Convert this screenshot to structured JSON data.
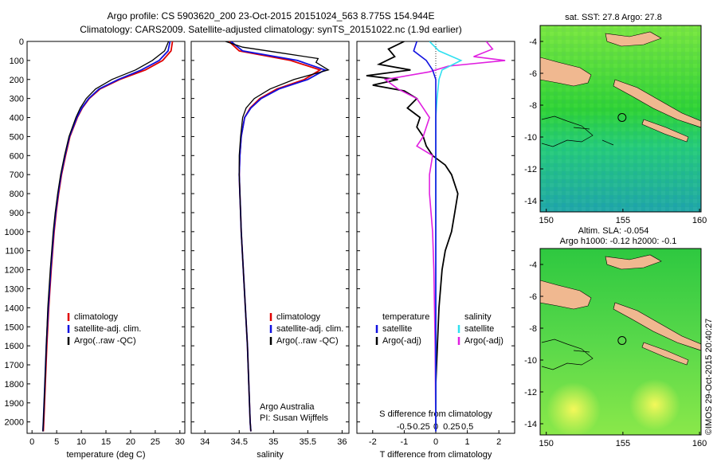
{
  "title_line1": "Argo profile: CS 5903620_200 23-Oct-2015 20151024_563 8.775S 154.944E",
  "title_line2": "Climatology: CARS2009. Satellite-adjusted climatology: synTS_20151022.nc (1.9d earlier)",
  "colors": {
    "climatology": "#e00000",
    "satellite": "#1010e0",
    "argo": "#000000",
    "sat_salinity": "#30e0f0",
    "argo_salinity": "#e020e0",
    "land": "#f0b890"
  },
  "chart_data": [
    {
      "type": "line",
      "title": "",
      "xlabel": "temperature (deg C)",
      "xlim": [
        -1,
        31
      ],
      "xticks": [
        "0",
        "5",
        "10",
        "15",
        "20",
        "25",
        "30"
      ],
      "ylim": [
        2060,
        0
      ],
      "yticks": [
        "0",
        "100",
        "200",
        "300",
        "400",
        "500",
        "600",
        "700",
        "800",
        "900",
        "1000",
        "1100",
        "1200",
        "1300",
        "1400",
        "1500",
        "1600",
        "1700",
        "1800",
        "1900",
        "2000"
      ],
      "legend": [
        "climatology",
        "satellite-adj. clim.",
        "Argo(..raw -QC)"
      ],
      "series": [
        {
          "name": "climatology",
          "depth": [
            0,
            50,
            100,
            150,
            200,
            250,
            300,
            350,
            400,
            500,
            600,
            700,
            800,
            900,
            1000,
            1200,
            1400,
            1600,
            1800,
            2000,
            2050
          ],
          "values": [
            28.5,
            28.2,
            26.5,
            23.0,
            17.8,
            13.8,
            11.6,
            10.2,
            9.2,
            7.7,
            6.8,
            6.0,
            5.4,
            4.9,
            4.5,
            3.9,
            3.4,
            3.0,
            2.7,
            2.4,
            2.3
          ]
        },
        {
          "name": "satellite-adj. clim.",
          "depth": [
            0,
            50,
            100,
            150,
            200,
            250,
            300,
            350,
            400,
            500,
            600,
            700,
            800,
            900,
            1000,
            1200,
            1400,
            1600,
            1800,
            2000,
            2050
          ],
          "values": [
            28.0,
            27.6,
            25.8,
            22.2,
            17.5,
            13.6,
            11.5,
            10.1,
            9.1,
            7.6,
            6.7,
            5.9,
            5.3,
            4.8,
            4.4,
            3.8,
            3.3,
            2.9,
            2.6,
            2.3,
            2.2
          ]
        },
        {
          "name": "Argo(..raw -QC)",
          "depth": [
            0,
            50,
            100,
            150,
            200,
            250,
            300,
            350,
            400,
            500,
            600,
            700,
            800,
            900,
            1000,
            1200,
            1400,
            1600,
            1800,
            2000,
            2050
          ],
          "values": [
            27.7,
            26.9,
            24.4,
            21.0,
            16.2,
            12.9,
            11.0,
            9.8,
            8.9,
            7.5,
            6.6,
            5.8,
            5.2,
            4.7,
            4.3,
            3.7,
            3.2,
            2.9,
            2.6,
            2.3,
            2.2
          ]
        }
      ]
    },
    {
      "type": "line",
      "title": "",
      "xlabel": "salinity",
      "xlim": [
        33.8,
        36.1
      ],
      "xticks": [
        "34",
        "34.5",
        "35",
        "35.5",
        "36"
      ],
      "ylim": [
        2060,
        0
      ],
      "legend": [
        "climatology",
        "satellite-adj. clim.",
        "Argo(..raw -QC)"
      ],
      "annotation": [
        "Argo Australia",
        "PI: Susan Wijffels"
      ],
      "series": [
        {
          "name": "climatology",
          "depth": [
            0,
            50,
            100,
            150,
            200,
            250,
            300,
            350,
            400,
            500,
            600,
            700,
            800,
            900,
            1000,
            1200,
            1400,
            1600,
            1800,
            2000,
            2050
          ],
          "values": [
            34.35,
            34.5,
            35.25,
            35.68,
            35.45,
            35.05,
            34.8,
            34.66,
            34.58,
            34.53,
            34.51,
            34.5,
            34.51,
            34.52,
            34.53,
            34.56,
            34.59,
            34.62,
            34.64,
            34.66,
            34.67
          ]
        },
        {
          "name": "satellite-adj. clim.",
          "depth": [
            0,
            50,
            100,
            150,
            200,
            250,
            300,
            350,
            400,
            500,
            600,
            700,
            800,
            900,
            1000,
            1200,
            1400,
            1600,
            1800,
            2000,
            2050
          ],
          "values": [
            34.38,
            34.55,
            35.35,
            35.75,
            35.5,
            35.08,
            34.82,
            34.67,
            34.58,
            34.53,
            34.51,
            34.5,
            34.51,
            34.52,
            34.53,
            34.56,
            34.59,
            34.62,
            34.64,
            34.66,
            34.67
          ]
        },
        {
          "name": "Argo(..raw -QC)",
          "depth": [
            0,
            30,
            60,
            90,
            110,
            150,
            200,
            250,
            300,
            350,
            400,
            500,
            600,
            700,
            800,
            900,
            1000,
            1200,
            1400,
            1600,
            1800,
            2000,
            2050
          ],
          "values": [
            34.3,
            34.55,
            35.1,
            35.65,
            35.62,
            35.8,
            35.3,
            34.95,
            34.72,
            34.6,
            34.55,
            34.52,
            34.5,
            34.5,
            34.51,
            34.52,
            34.53,
            34.56,
            34.59,
            34.62,
            34.64,
            34.66,
            34.67
          ]
        }
      ]
    },
    {
      "type": "line",
      "title": "",
      "xlabel": "T difference from climatology",
      "xlabel_top": "S difference from climatology",
      "xlim_T": [
        -2.5,
        2.5
      ],
      "xticks_T": [
        "-2",
        "-1",
        "0",
        "1",
        "2"
      ],
      "xticks_S": [
        "-0.5",
        "-0.25",
        "0",
        "0.25",
        "0.5"
      ],
      "ylim": [
        2060,
        0
      ],
      "legend_headers": [
        "temperature",
        "salinity"
      ],
      "legend": [
        "satellite",
        "Argo(-adj)",
        "satellite",
        "Argo(-adj)"
      ],
      "series": [
        {
          "name": "temperature satellite",
          "depth": [
            0,
            50,
            100,
            150,
            200,
            300,
            400,
            500,
            600,
            800,
            1000,
            1500,
            2050
          ],
          "values": [
            -0.6,
            -0.7,
            -0.3,
            -0.1,
            0.0,
            0.0,
            0.0,
            0.0,
            0.0,
            0.0,
            0.0,
            0.0,
            0.0
          ]
        },
        {
          "name": "temperature Argo(-adj)",
          "depth": [
            0,
            40,
            80,
            120,
            150,
            180,
            200,
            230,
            260,
            300,
            350,
            400,
            450,
            500,
            550,
            600,
            650,
            700,
            800,
            900,
            1000,
            1100,
            1200,
            1400,
            1600,
            1800,
            2050
          ],
          "values": [
            -1.0,
            -1.5,
            -1.3,
            -1.8,
            -0.8,
            -2.2,
            -1.2,
            -2.0,
            -1.0,
            -0.6,
            -0.9,
            -0.5,
            -0.6,
            -0.4,
            -0.3,
            -0.1,
            0.3,
            0.5,
            0.7,
            0.6,
            0.5,
            0.3,
            0.2,
            0.1,
            0.05,
            0.0,
            0.0
          ]
        },
        {
          "name": "salinity satellite",
          "depth": [
            0,
            50,
            100,
            150,
            200,
            300,
            400,
            500,
            600,
            800,
            1000,
            1500,
            2050
          ],
          "values": [
            -0.1,
            0.05,
            0.4,
            0.1,
            0.05,
            0.02,
            0.0,
            0.0,
            0.0,
            0.0,
            0.0,
            0.0,
            0.0
          ]
        },
        {
          "name": "salinity Argo(-adj)",
          "depth": [
            0,
            40,
            80,
            100,
            130,
            160,
            200,
            250,
            300,
            350,
            400,
            500,
            550,
            600,
            700,
            800,
            1000,
            1200,
            1400,
            1600,
            2050
          ],
          "values": [
            0.8,
            0.9,
            0.6,
            1.1,
            0.2,
            -0.1,
            -0.8,
            -0.6,
            -0.3,
            -0.2,
            -0.1,
            -0.2,
            -0.3,
            -0.05,
            -0.1,
            -0.1,
            -0.05,
            -0.03,
            -0.02,
            -0.01,
            0.0
          ]
        }
      ]
    },
    {
      "type": "heatmap",
      "title": "sat. SST: 27.8 Argo: 27.8",
      "xticks": [
        "150",
        "155",
        "160"
      ],
      "yticks": [
        "-4",
        "-6",
        "-8",
        "-10",
        "-12",
        "-14"
      ],
      "xlim": [
        149.6,
        160.1
      ],
      "ylim": [
        -14.7,
        -3.0
      ],
      "marker": {
        "lon": 154.944,
        "lat": -8.775
      }
    },
    {
      "type": "heatmap",
      "title_line1": "Altim. SLA: -0.054",
      "title_line2": "Argo h1000: -0.12 h2000: -0.1",
      "xticks": [
        "150",
        "155",
        "160"
      ],
      "yticks": [
        "-4",
        "-6",
        "-8",
        "-10",
        "-12",
        "-14"
      ],
      "xlim": [
        149.6,
        160.1
      ],
      "ylim": [
        -14.7,
        -3.0
      ],
      "marker": {
        "lon": 154.944,
        "lat": -8.775
      },
      "side_label": "©IMOS 29-Oct-2015 20:40:27"
    }
  ]
}
